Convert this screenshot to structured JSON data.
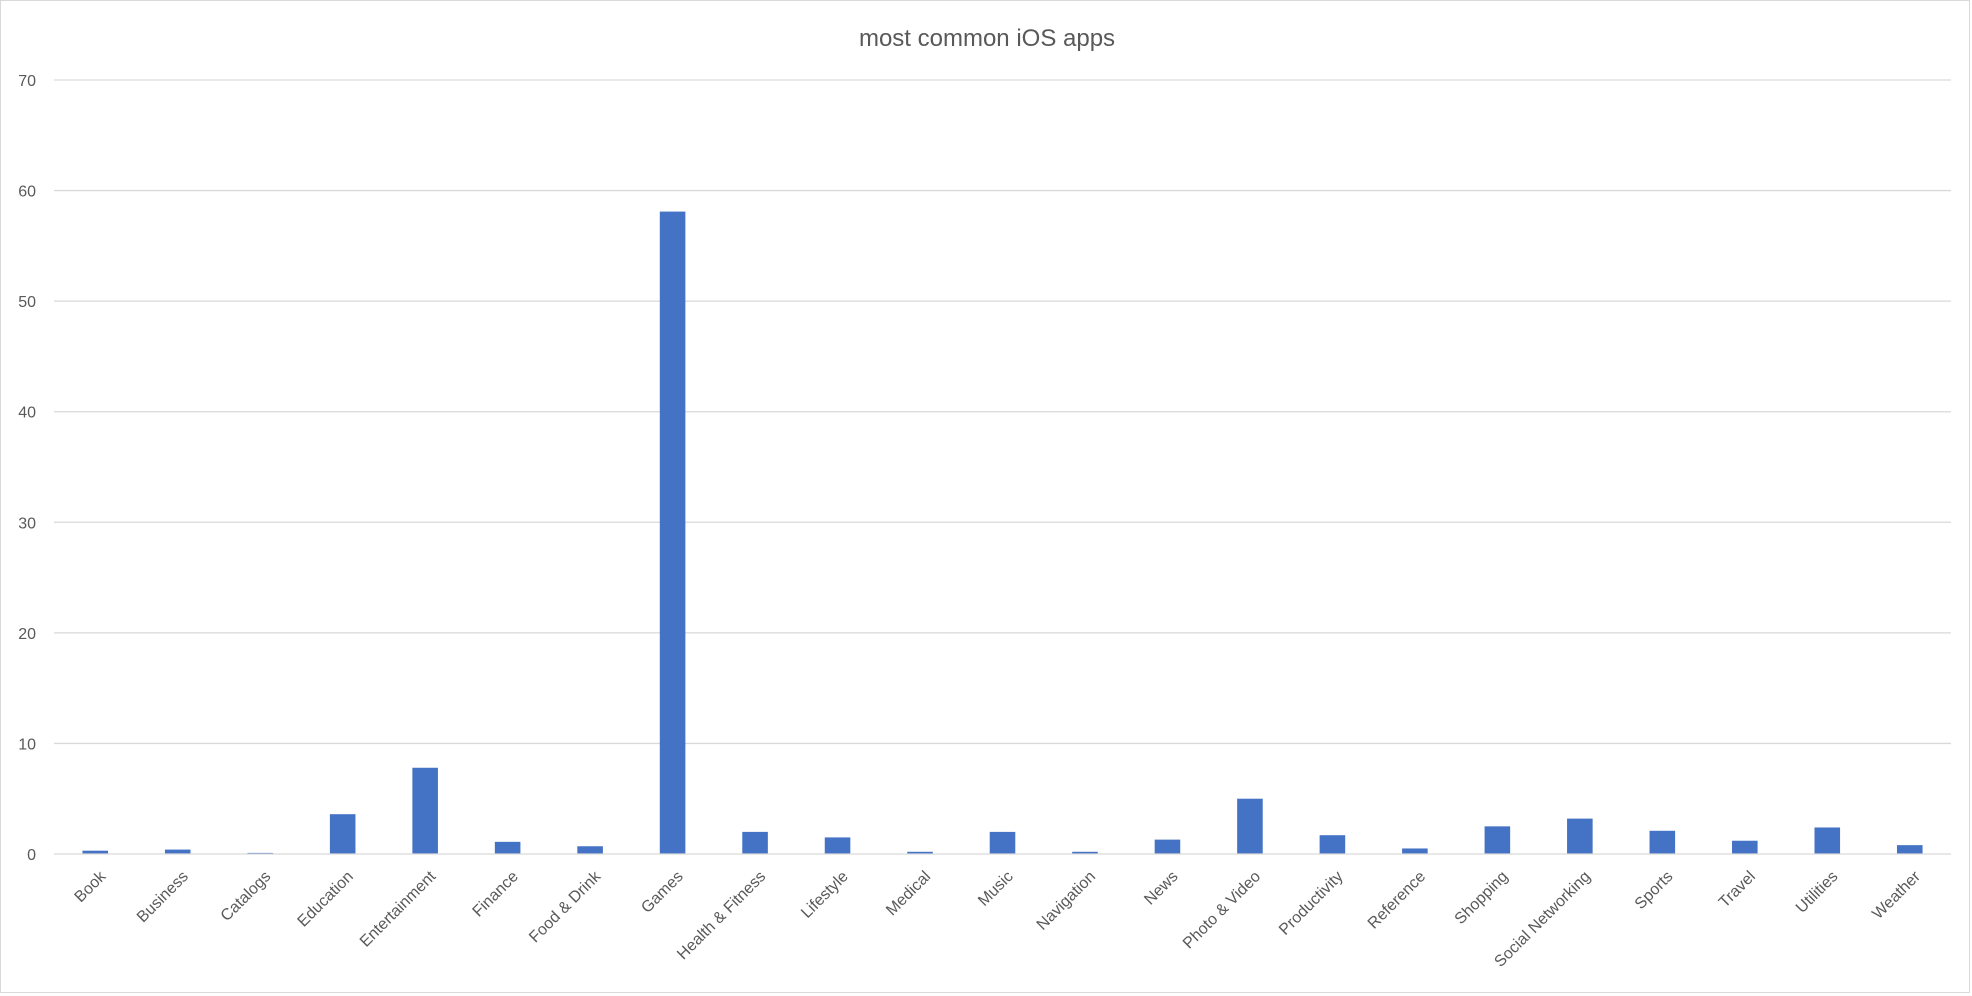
{
  "chart_data": {
    "type": "bar",
    "title": "most common iOS apps",
    "xlabel": "",
    "ylabel": "",
    "ylim": [
      0,
      70
    ],
    "yticks": [
      0,
      10,
      20,
      30,
      40,
      50,
      60,
      70
    ],
    "grid": true,
    "legend": "none",
    "bar_color": "#4472C4",
    "categories": [
      "Book",
      "Business",
      "Catalogs",
      "Education",
      "Entertainment",
      "Finance",
      "Food & Drink",
      "Games",
      "Health & Fitness",
      "Lifestyle",
      "Medical",
      "Music",
      "Navigation",
      "News",
      "Photo & Video",
      "Productivity",
      "Reference",
      "Shopping",
      "Social Networking",
      "Sports",
      "Travel",
      "Utilities",
      "Weather"
    ],
    "values": [
      0.3,
      0.4,
      0.1,
      3.6,
      7.8,
      1.1,
      0.7,
      58.1,
      2.0,
      1.5,
      0.2,
      2.0,
      0.2,
      1.3,
      5.0,
      1.7,
      0.5,
      2.5,
      3.2,
      2.1,
      1.2,
      2.4,
      0.8
    ]
  }
}
